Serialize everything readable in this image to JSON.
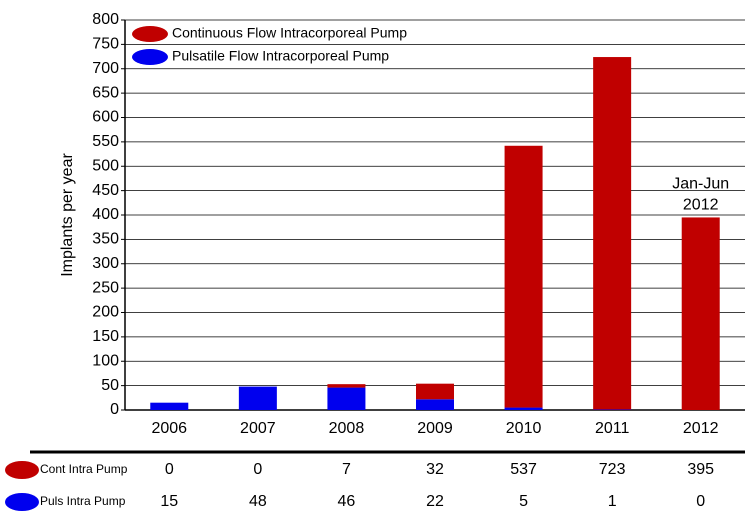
{
  "chart_data": {
    "type": "stacked_bar",
    "y_label": "Implants per year",
    "categories": [
      "2006",
      "2007",
      "2008",
      "2009",
      "2010",
      "2011",
      "2012"
    ],
    "series": [
      {
        "name": "Pulsatile Flow Intracorporeal Pump",
        "table_label": "Puls Intra Pump",
        "color": "#0000ee",
        "values": [
          15,
          48,
          46,
          22,
          5,
          1,
          0
        ]
      },
      {
        "name": "Continuous Flow Intracorporeal Pump",
        "table_label": "Cont Intra Pump",
        "color": "#c00000",
        "values": [
          0,
          0,
          7,
          32,
          537,
          723,
          395
        ]
      }
    ],
    "annotation": [
      "Jan-Jun",
      "2012"
    ],
    "ylim": [
      0,
      800
    ],
    "yticks": [
      0,
      50,
      100,
      150,
      200,
      250,
      300,
      350,
      400,
      450,
      500,
      550,
      600,
      650,
      700,
      750,
      800
    ],
    "grid": true
  }
}
